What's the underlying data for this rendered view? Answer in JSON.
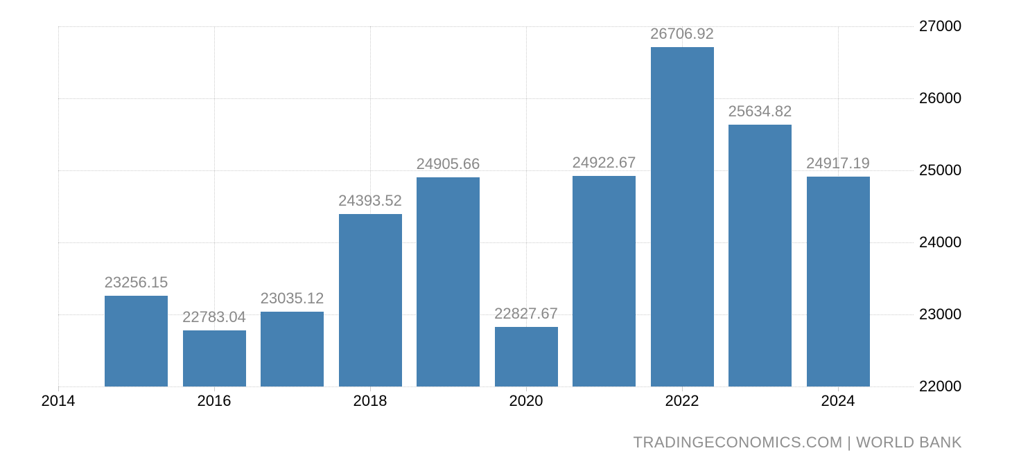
{
  "chart_data": {
    "type": "bar",
    "title": "",
    "source_label": "TRADINGECONOMICS.COM | WORLD BANK",
    "categories": [
      "2015",
      "2016",
      "2017",
      "2018",
      "2019",
      "2020",
      "2021",
      "2022",
      "2023",
      "2024"
    ],
    "values": [
      23256.15,
      22783.04,
      23035.12,
      24393.52,
      24905.66,
      22827.67,
      24922.67,
      26706.92,
      25634.82,
      24917.19
    ],
    "value_labels": [
      "23256.15",
      "22783.04",
      "23035.12",
      "24393.52",
      "24905.66",
      "22827.67",
      "24922.67",
      "26706.92",
      "25634.82",
      "24917.19"
    ],
    "x_tick_labels": [
      "2014",
      "2016",
      "2018",
      "2020",
      "2022",
      "2024"
    ],
    "x_tick_years": [
      2014,
      2016,
      2018,
      2020,
      2022,
      2024
    ],
    "xlim": [
      2014,
      2025
    ],
    "y_ticks": [
      22000,
      23000,
      24000,
      25000,
      26000,
      27000
    ],
    "y_tick_labels": [
      "22000",
      "23000",
      "24000",
      "25000",
      "26000",
      "27000"
    ],
    "ylim": [
      22000,
      27000
    ],
    "grid": "dotted",
    "legend": "none",
    "colors": {
      "bar": "#4681b2",
      "value_label": "#888888",
      "axis_label": "#000000",
      "gridline": "#cccccc",
      "attribution": "#8e8e8e",
      "background": "#ffffff"
    }
  }
}
